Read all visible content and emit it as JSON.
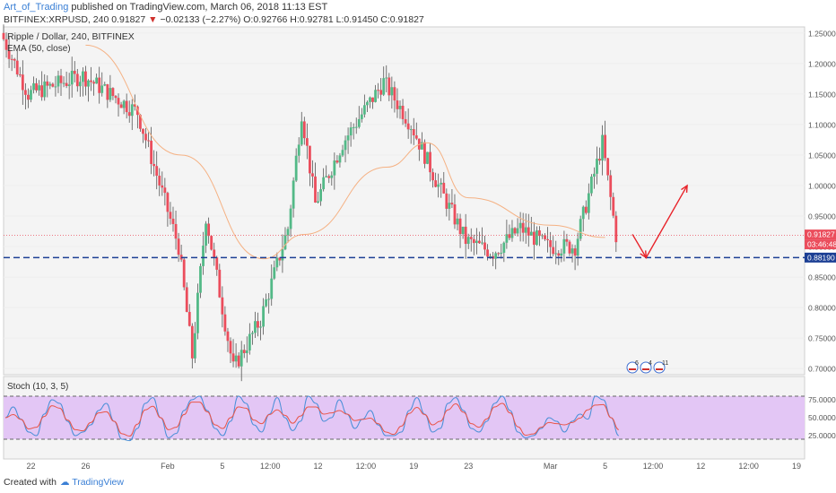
{
  "header": {
    "author": "Art_of_Trading",
    "published": " published on TradingView.com, March 06, 2018 11:13 EST",
    "symbol": "BITFINEX:XRPUSD, 240",
    "last": "0.91827",
    "arrow": "▼",
    "change": "−0.02133 (−2.27%)",
    "o_label": "O:",
    "o": "0.92766",
    "h_label": "H:",
    "h": "0.92781",
    "l_label": "L:",
    "l": "0.91450",
    "c_label": "C:",
    "c": "0.91827"
  },
  "legend": {
    "title": "Ripple / Dollar, 240, BITFINEX",
    "ema": "EMA (50, close)",
    "stoch": "Stoch (10, 3, 5)"
  },
  "footer": {
    "created": "Created with",
    "brand": "TradingView"
  },
  "colors": {
    "up": "#53b987",
    "down": "#eb4d5c",
    "wick": "#555555",
    "ema": "#f5b183",
    "support": "#1c3f94",
    "price_line": "#eb4d5c",
    "arrow": "#e8232a",
    "stoch_bg": "#e3c6f5",
    "stoch_k": "#4a8fd8",
    "stoch_d": "#e8564a",
    "axis_text": "#555555",
    "grid": "#eeeeee"
  },
  "price_axis": {
    "ticks": [
      "1.25000",
      "1.20000",
      "1.15000",
      "1.10000",
      "1.05000",
      "1.00000",
      "0.95000",
      "0.90000",
      "0.85000",
      "0.80000",
      "0.75000",
      "0.70000"
    ]
  },
  "price_labels": {
    "last": "0.91827",
    "countdown": "03:46:48",
    "support": "0.88190"
  },
  "stoch_axis": {
    "ticks": [
      "75.0000",
      "50.0000",
      "25.0000"
    ],
    "upper": 80,
    "lower": 20
  },
  "time_axis": {
    "labels": [
      "22",
      "26",
      "Feb",
      "5",
      "12:00",
      "12",
      "12:00",
      "19",
      "23",
      "Mar",
      "5",
      "12:00",
      "12",
      "12:00",
      "19"
    ]
  },
  "events": {
    "labels": [
      "6",
      "4",
      "11"
    ]
  },
  "chart_data": {
    "type": "candlestick",
    "title": "Ripple / Dollar, 240, BITFINEX",
    "ylim": [
      0.69,
      1.26
    ],
    "support_level": 0.8819,
    "last_price": 0.91827,
    "key_points": [
      {
        "x": "Jan 20",
        "price": 1.25
      },
      {
        "x": "Jan 22",
        "price": 1.15
      },
      {
        "x": "Jan 26",
        "price": 1.18
      },
      {
        "x": "Jan 30",
        "price": 1.12
      },
      {
        "x": "Feb 2",
        "price": 0.9
      },
      {
        "x": "Feb 3",
        "price": 0.72
      },
      {
        "x": "Feb 4",
        "price": 0.95
      },
      {
        "x": "Feb 6",
        "price": 0.7
      },
      {
        "x": "Feb 8",
        "price": 0.78
      },
      {
        "x": "Feb 10",
        "price": 0.93
      },
      {
        "x": "Feb 11",
        "price": 1.12
      },
      {
        "x": "Feb 12",
        "price": 0.97
      },
      {
        "x": "Feb 14",
        "price": 1.07
      },
      {
        "x": "Feb 17",
        "price": 1.17
      },
      {
        "x": "Feb 19",
        "price": 1.1
      },
      {
        "x": "Feb 21",
        "price": 1.0
      },
      {
        "x": "Feb 23",
        "price": 0.91
      },
      {
        "x": "Feb 25",
        "price": 0.89
      },
      {
        "x": "Feb 27",
        "price": 0.93
      },
      {
        "x": "Mar 1",
        "price": 0.9
      },
      {
        "x": "Mar 3",
        "price": 0.9
      },
      {
        "x": "Mar 5",
        "price": 1.07
      },
      {
        "x": "Mar 6",
        "price": 0.918
      }
    ],
    "ema_points": [
      {
        "x": "Jan 26",
        "value": 1.23
      },
      {
        "x": "Feb 2",
        "value": 1.05
      },
      {
        "x": "Feb 8",
        "value": 0.88
      },
      {
        "x": "Feb 11",
        "value": 0.92
      },
      {
        "x": "Feb 17",
        "value": 1.03
      },
      {
        "x": "Feb 20",
        "value": 1.07
      },
      {
        "x": "Feb 23",
        "value": 0.98
      },
      {
        "x": "Mar 1",
        "value": 0.935
      },
      {
        "x": "Mar 5",
        "value": 0.915
      }
    ],
    "projection": [
      {
        "x": "Mar 7",
        "price": 0.92
      },
      {
        "x": "Mar 8",
        "price": 0.8819
      },
      {
        "x": "Mar 11",
        "price": 1.0
      }
    ],
    "stoch_k": [
      50,
      65,
      48,
      30,
      25,
      55,
      75,
      70,
      45,
      25,
      30,
      40,
      60,
      70,
      45,
      20,
      18,
      35,
      70,
      78,
      50,
      22,
      28,
      60,
      75,
      80,
      60,
      35,
      25,
      45,
      80,
      70,
      40,
      30,
      55,
      78,
      50,
      32,
      45,
      80,
      70,
      45,
      50,
      75,
      55,
      35,
      48,
      60,
      40,
      25,
      25,
      30,
      60,
      78,
      55,
      30,
      35,
      70,
      78,
      60,
      35,
      30,
      45,
      70,
      80,
      60,
      30,
      22,
      25,
      35,
      50,
      45,
      30,
      45,
      55,
      48,
      80,
      75,
      50,
      25
    ]
  }
}
